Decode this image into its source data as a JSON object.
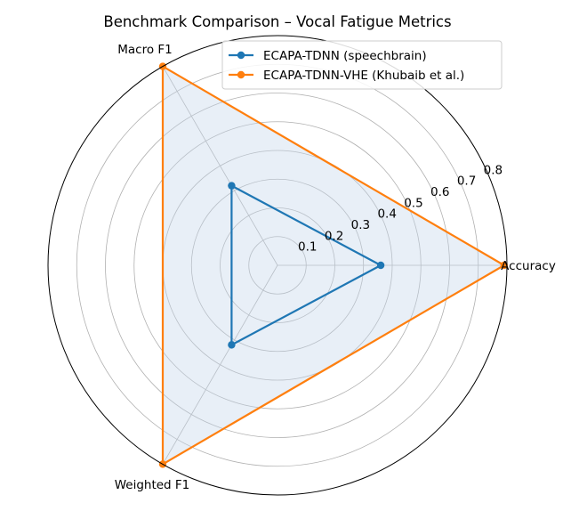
{
  "chart_data": {
    "type": "radar",
    "title": "Benchmark Comparison – Vocal Fatigue Metrics",
    "categories": [
      "Accuracy",
      "Macro F1",
      "Weighted F1"
    ],
    "rlim": [
      0,
      0.8
    ],
    "rticks": [
      "0.1",
      "0.2",
      "0.3",
      "0.4",
      "0.5",
      "0.6",
      "0.7",
      "0.8"
    ],
    "grid": true,
    "legend_position": "top-right",
    "series": [
      {
        "name": "ECAPA-TDNN (speechbrain)",
        "values": [
          0.36,
          0.32,
          0.32
        ],
        "color": "#1f77b4",
        "fill": false
      },
      {
        "name": "ECAPA-TDNN-VHE (Khubaib et al.)",
        "values": [
          0.79,
          0.8,
          0.8
        ],
        "color": "#ff7f0e",
        "fill": true,
        "fill_color": "#c6d8ea"
      }
    ]
  }
}
